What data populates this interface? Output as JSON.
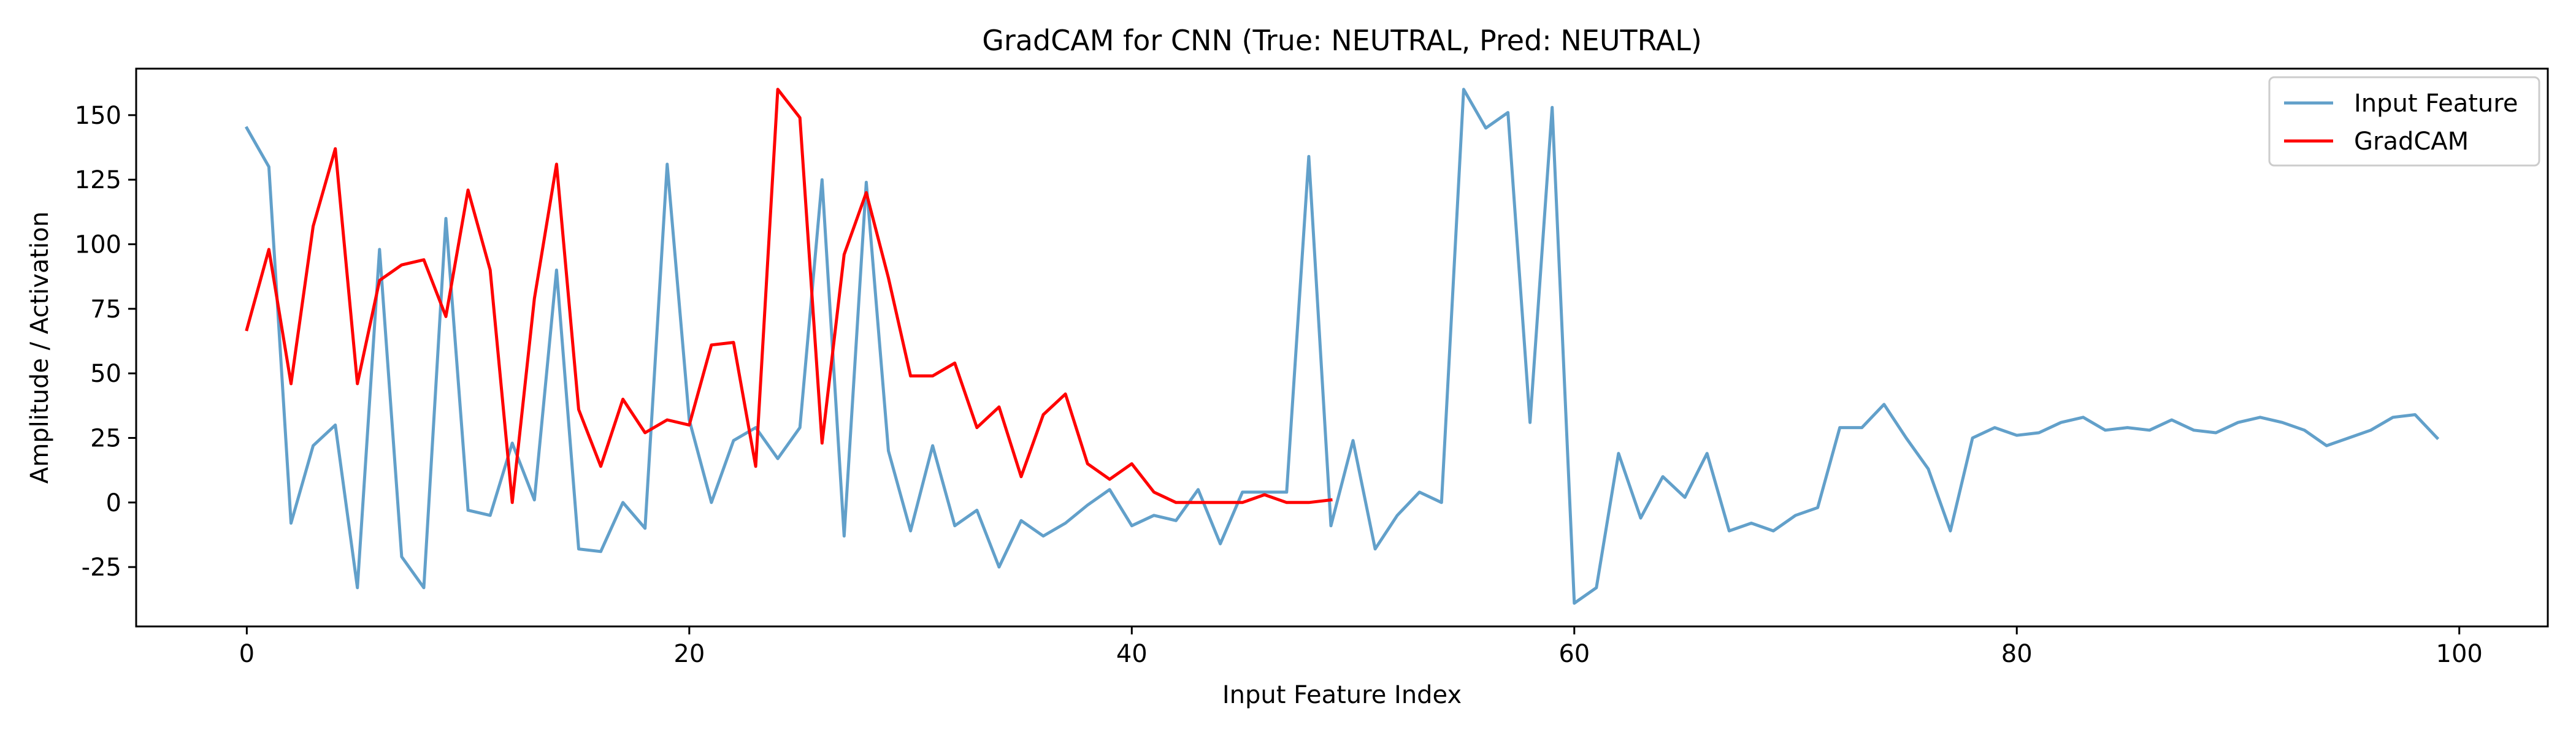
{
  "chart_data": {
    "type": "line",
    "title": "GradCAM for CNN (True: NEUTRAL, Pred: NEUTRAL)",
    "xlabel": "Input Feature Index",
    "ylabel": "Amplitude / Activation",
    "xlim": [
      -5,
      104
    ],
    "ylim": [
      -48,
      168
    ],
    "xticks": [
      0,
      20,
      40,
      60,
      80,
      100
    ],
    "yticks": [
      -25,
      0,
      25,
      50,
      75,
      100,
      125,
      150
    ],
    "legend_position": "top-right",
    "series": [
      {
        "name": "Input Feature",
        "color": "#1f77b4",
        "opacity": 0.7,
        "x": [
          0,
          1,
          2,
          3,
          4,
          5,
          6,
          7,
          8,
          9,
          10,
          11,
          12,
          13,
          14,
          15,
          16,
          17,
          18,
          19,
          20,
          21,
          22,
          23,
          24,
          25,
          26,
          27,
          28,
          29,
          30,
          31,
          32,
          33,
          34,
          35,
          36,
          37,
          38,
          39,
          40,
          41,
          42,
          43,
          44,
          45,
          46,
          47,
          48,
          49,
          50,
          51,
          52,
          53,
          54,
          55,
          56,
          57,
          58,
          59,
          60,
          61,
          62,
          63,
          64,
          65,
          66,
          67,
          68,
          69,
          70,
          71,
          72,
          73,
          74,
          75,
          76,
          77,
          78,
          79,
          80,
          81,
          82,
          83,
          84,
          85,
          86,
          87,
          88,
          89,
          90,
          91,
          92,
          93,
          94,
          95,
          96,
          97,
          98,
          99
        ],
        "values": [
          145,
          130,
          -8,
          22,
          30,
          -33,
          98,
          -21,
          -33,
          110,
          -3,
          -5,
          23,
          1,
          90,
          -18,
          -19,
          0,
          -10,
          131,
          32,
          0,
          24,
          29,
          17,
          29,
          125,
          -13,
          124,
          20,
          -11,
          22,
          -9,
          -3,
          -25,
          -7,
          -13,
          -8,
          -1,
          5,
          -9,
          -5,
          -7,
          5,
          -16,
          4,
          4,
          4,
          134,
          -9,
          24,
          -18,
          -5,
          4,
          0,
          160,
          145,
          151,
          31,
          153,
          -39,
          -33,
          19,
          -6,
          10,
          2,
          19,
          -11,
          -8,
          -11,
          -5,
          -2,
          29,
          29,
          38,
          25,
          13,
          -11,
          25,
          29,
          26,
          27,
          31,
          33,
          28,
          29,
          28,
          32,
          28,
          27,
          31,
          33,
          31,
          28,
          22,
          25,
          28,
          33,
          34,
          25
        ]
      },
      {
        "name": "GradCAM",
        "color": "#ff0000",
        "opacity": 1,
        "x": [
          0,
          1,
          2,
          3,
          4,
          5,
          6,
          7,
          8,
          9,
          10,
          11,
          12,
          13,
          14,
          15,
          16,
          17,
          18,
          19,
          20,
          21,
          22,
          23,
          24,
          25,
          26,
          27,
          28,
          29,
          30,
          31,
          32,
          33,
          34,
          35,
          36,
          37,
          38,
          39,
          40,
          41,
          42,
          43,
          44,
          45,
          46,
          47,
          48,
          49
        ],
        "values": [
          67,
          98,
          46,
          107,
          137,
          46,
          86,
          92,
          94,
          72,
          121,
          90,
          0,
          79,
          131,
          36,
          14,
          40,
          27,
          32,
          30,
          61,
          62,
          14,
          160,
          149,
          23,
          96,
          120,
          87,
          49,
          49,
          54,
          29,
          37,
          10,
          34,
          42,
          15,
          9,
          15,
          4,
          0,
          0,
          0,
          0,
          3,
          0,
          0,
          1
        ]
      }
    ]
  }
}
